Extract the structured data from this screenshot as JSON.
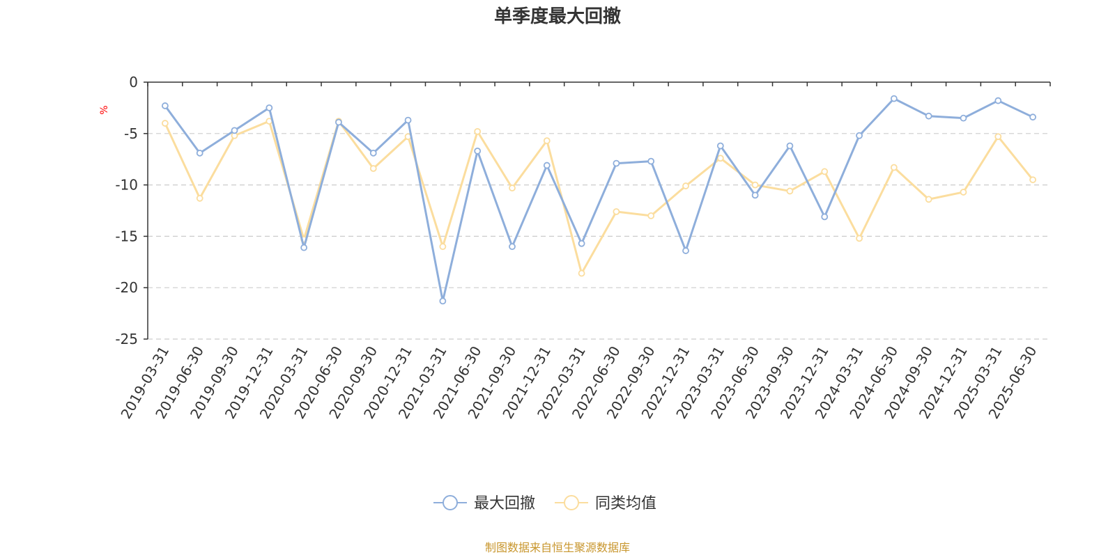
{
  "chart_data": {
    "type": "line",
    "title": "单季度最大回撤",
    "ylabel": "%",
    "xlabel": "",
    "ylim": [
      -25,
      0
    ],
    "yticks": [
      0,
      -5,
      -10,
      -15,
      -20,
      -25
    ],
    "grid": true,
    "legend_position": "bottom-center",
    "categories": [
      "2019-03-31",
      "2019-06-30",
      "2019-09-30",
      "2019-12-31",
      "2020-03-31",
      "2020-06-30",
      "2020-09-30",
      "2020-12-31",
      "2021-03-31",
      "2021-06-30",
      "2021-09-30",
      "2021-12-31",
      "2022-03-31",
      "2022-06-30",
      "2022-09-30",
      "2022-12-31",
      "2023-03-31",
      "2023-06-30",
      "2023-09-30",
      "2023-12-31",
      "2024-03-31",
      "2024-06-30",
      "2024-09-30",
      "2024-12-31",
      "2025-03-31",
      "2025-06-30"
    ],
    "series": [
      {
        "name": "最大回撤",
        "color": "#8eaedb",
        "values": [
          -2.3,
          -6.9,
          -4.7,
          -2.5,
          -16.1,
          -3.9,
          -6.9,
          -3.7,
          -21.3,
          -6.7,
          -16.0,
          -8.1,
          -15.7,
          -7.9,
          -7.7,
          -16.4,
          -6.2,
          -11.0,
          -6.2,
          -13.1,
          -5.2,
          -1.6,
          -3.3,
          -3.5,
          -1.8,
          -3.4
        ]
      },
      {
        "name": "同类均值",
        "color": "#fbdd9e",
        "values": [
          -4.0,
          -11.3,
          -5.2,
          -3.8,
          -15.3,
          -3.8,
          -8.4,
          -5.3,
          -16.0,
          -4.8,
          -10.3,
          -5.7,
          -18.6,
          -12.6,
          -13.0,
          -10.1,
          -7.4,
          -10.0,
          -10.6,
          -8.7,
          -15.2,
          -8.3,
          -11.4,
          -10.7,
          -5.3,
          -9.5
        ]
      }
    ]
  },
  "source": "制图数据来自恒生聚源数据库",
  "colors": {
    "source_text": "#c8962d",
    "ylabel_text": "#ff0000",
    "axis": "#333333",
    "grid": "#cccccc"
  }
}
